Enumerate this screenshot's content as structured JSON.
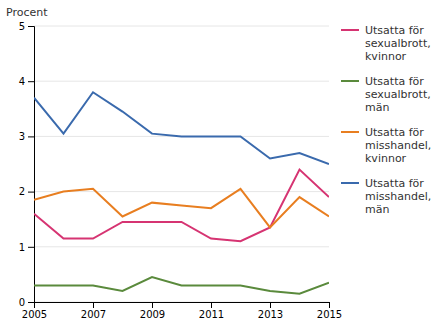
{
  "chart_data": {
    "type": "line",
    "y_label": "Procent",
    "x": [
      2005,
      2006,
      2007,
      2008,
      2009,
      2010,
      2011,
      2012,
      2013,
      2014,
      2015
    ],
    "xlim": [
      2005,
      2015
    ],
    "xticks": [
      2005,
      2007,
      2009,
      2011,
      2013,
      2015
    ],
    "ylim": [
      0,
      5
    ],
    "yticks": [
      0,
      1,
      2,
      3,
      4,
      5
    ],
    "grid": true,
    "legend": "right",
    "series": [
      {
        "name": "Utsatta för\nsexualbrott,\nkvinnor",
        "color": "#d63472",
        "values": [
          1.6,
          1.15,
          1.15,
          1.45,
          1.45,
          1.45,
          1.15,
          1.1,
          1.35,
          2.4,
          1.9
        ]
      },
      {
        "name": "Utsatta för\nsexualbrott,\nmän",
        "color": "#5a8a3c",
        "values": [
          0.3,
          0.3,
          0.3,
          0.2,
          0.45,
          0.3,
          0.3,
          0.3,
          0.2,
          0.15,
          0.35
        ]
      },
      {
        "name": "Utsatta för\nmisshandel,\nkvinnor",
        "color": "#e87e20",
        "values": [
          1.85,
          2.0,
          2.05,
          1.55,
          1.8,
          1.75,
          1.7,
          2.05,
          1.35,
          1.9,
          1.55
        ]
      },
      {
        "name": "Utsatta för\nmisshandel,\nmän",
        "color": "#3a6aad",
        "values": [
          3.7,
          3.05,
          3.8,
          3.45,
          3.05,
          3.0,
          3.0,
          3.0,
          2.6,
          2.7,
          2.5
        ]
      }
    ]
  }
}
